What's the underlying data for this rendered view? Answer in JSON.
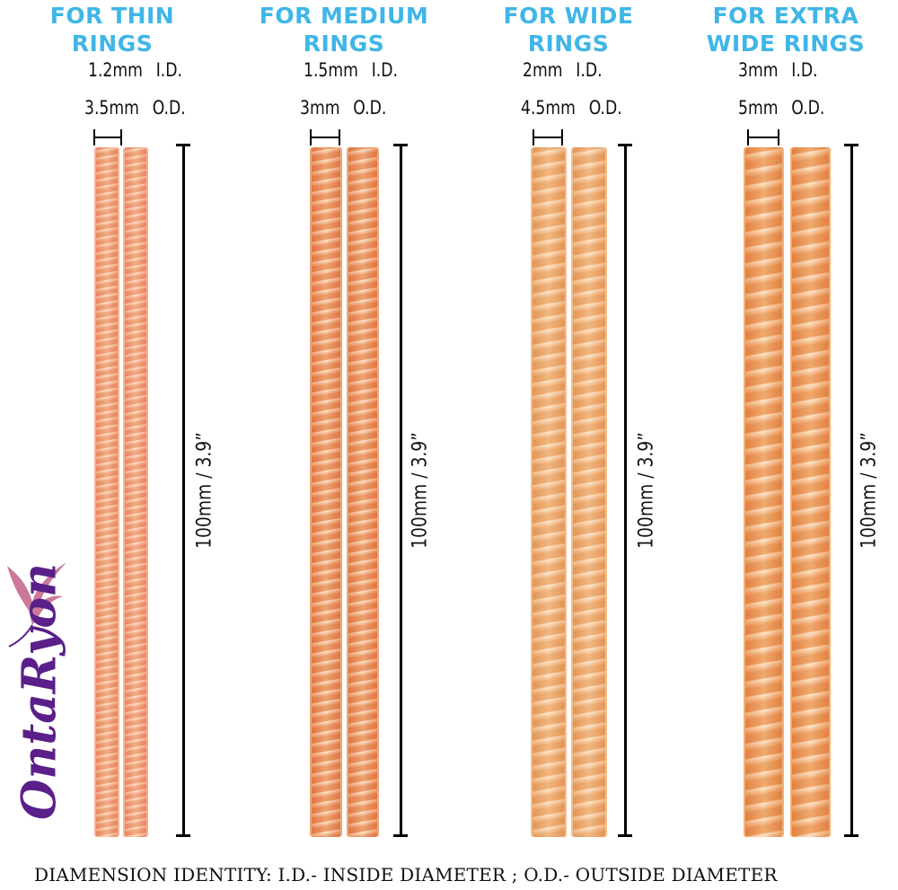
{
  "columns": [
    {
      "title_line1": "FOR THIN",
      "title_line2": "RINGS",
      "id_value": "1.2mm",
      "id_label": "I.D.",
      "od_value": "3.5mm",
      "od_label": "O.D.",
      "length_label": "100mm / 3.9”",
      "spring_color": "#f2b394"
    },
    {
      "title_line1": "FOR MEDIUM",
      "title_line2": "RINGS",
      "id_value": "1.5mm",
      "id_label": "I.D.",
      "od_value": "3mm",
      "od_label": "O.D.",
      "length_label": "100mm / 3.9”",
      "spring_color": "#eda97c"
    },
    {
      "title_line1": "FOR WIDE",
      "title_line2": "RINGS",
      "id_value": "2mm",
      "id_label": "I.D.",
      "od_value": "4.5mm",
      "od_label": "O.D.",
      "length_label": "100mm / 3.9”",
      "spring_color": "#f0c08f"
    },
    {
      "title_line1": "FOR EXTRA",
      "title_line2": "WIDE RINGS",
      "id_value": "3mm",
      "id_label": "I.D.",
      "od_value": "5mm",
      "od_label": "O.D.",
      "length_label": "100mm / 3.9”",
      "spring_color": "#efb27b"
    }
  ],
  "footer": "DIAMENSION IDENTITY: I.D.- INSIDE DIAMETER ; O.D.- OUTSIDE DIAMETER",
  "logo": {
    "text": "OntaRyon",
    "color": "#5b1f8a"
  },
  "colors": {
    "title": "#3fb6e6",
    "text": "#111111",
    "spring_highlight": "#fff3e6"
  }
}
